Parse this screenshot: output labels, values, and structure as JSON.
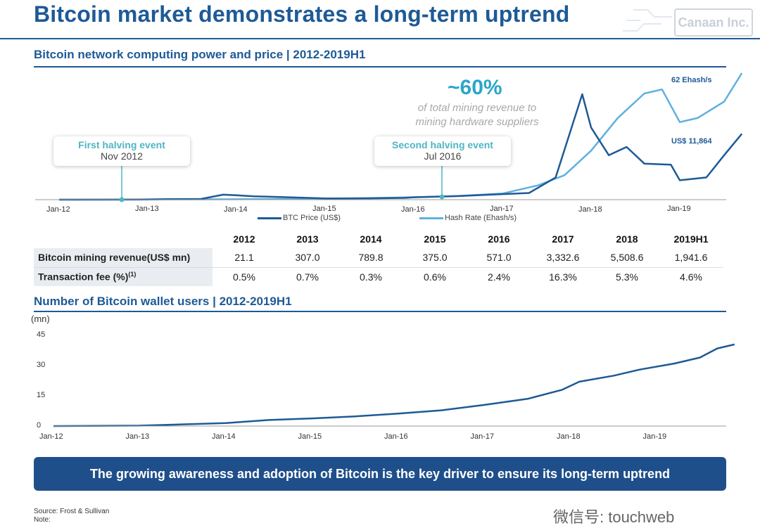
{
  "header": {
    "title": "Bitcoin market demonstrates a long-term uptrend",
    "logo": "Canaan Inc."
  },
  "top_chart": {
    "section_title": "Bitcoin network computing power and price | 2012-2019H1",
    "callout_first": {
      "heading": "First halving event",
      "sub": "Nov 2012"
    },
    "callout_second": {
      "heading": "Second halving event",
      "sub": "Jul 2016"
    },
    "pct": "~60%",
    "pct_note_1": "of total mining revenue to",
    "pct_note_2": "mining hardware suppliers",
    "hash_label": "62 Ehash/s",
    "price_label": "US$ 11,864",
    "legend_btc": "BTC Price (US$)",
    "legend_hash": "Hash Rate (Ehash/s)",
    "colors": {
      "btc": "#1e5a96",
      "hash": "#5fb0df"
    }
  },
  "table": {
    "headers": [
      "2012",
      "2013",
      "2014",
      "2015",
      "2016",
      "2017",
      "2018",
      "2019H1"
    ],
    "rows": [
      {
        "label": "Bitcoin mining revenue(US$ mn)",
        "values": [
          "21.1",
          "307.0",
          "789.8",
          "375.0",
          "571.0",
          "3,332.6",
          "5,508.6",
          "1,941.6"
        ]
      },
      {
        "label": "Transaction fee (%)",
        "sup": "(1)",
        "values": [
          "0.5%",
          "0.7%",
          "0.3%",
          "0.6%",
          "2.4%",
          "16.3%",
          "5.3%",
          "4.6%"
        ]
      }
    ]
  },
  "bottom_chart": {
    "section_title": "Number of Bitcoin wallet users | 2012-2019H1",
    "unit": "(mn)"
  },
  "chart_data": [
    {
      "type": "line",
      "x": [
        "Jan-12",
        "Jan-13",
        "Jan-14",
        "Jan-15",
        "Jan-16",
        "Jan-17",
        "Jan-18",
        "Jan-19"
      ],
      "series": [
        {
          "name": "BTC Price (US$)",
          "points": [
            [
              0,
              6
            ],
            [
              0.5,
              6
            ],
            [
              0.9,
              13
            ],
            [
              1.2,
              100
            ],
            [
              1.6,
              130
            ],
            [
              1.85,
              900
            ],
            [
              2.0,
              800
            ],
            [
              2.2,
              600
            ],
            [
              2.5,
              480
            ],
            [
              3.0,
              220
            ],
            [
              3.5,
              240
            ],
            [
              3.9,
              320
            ],
            [
              4.0,
              430
            ],
            [
              4.5,
              650
            ],
            [
              5.0,
              1000
            ],
            [
              5.3,
              1200
            ],
            [
              5.6,
              4000
            ],
            [
              5.9,
              19000
            ],
            [
              6.0,
              13000
            ],
            [
              6.2,
              8000
            ],
            [
              6.4,
              9500
            ],
            [
              6.6,
              6500
            ],
            [
              6.9,
              6300
            ],
            [
              7.0,
              3500
            ],
            [
              7.3,
              4000
            ],
            [
              7.5,
              8000
            ],
            [
              7.7,
              11864
            ]
          ]
        },
        {
          "name": "Hash Rate (Ehash/s)",
          "points": [
            [
              0,
              0
            ],
            [
              2.0,
              0.2
            ],
            [
              3.0,
              0.4
            ],
            [
              4.0,
              1.2
            ],
            [
              4.5,
              1.8
            ],
            [
              5.0,
              3
            ],
            [
              5.4,
              7
            ],
            [
              5.7,
              12
            ],
            [
              6.0,
              24
            ],
            [
              6.3,
              40
            ],
            [
              6.6,
              52
            ],
            [
              6.8,
              54
            ],
            [
              7.0,
              38
            ],
            [
              7.2,
              40
            ],
            [
              7.5,
              48
            ],
            [
              7.7,
              62
            ]
          ]
        }
      ],
      "annotations": [
        "First halving event Nov 2012",
        "Second halving event Jul 2016",
        "~60% of total mining revenue to mining hardware suppliers",
        "62 Ehash/s",
        "US$ 11,864"
      ]
    },
    {
      "type": "line",
      "x": [
        "Jan-12",
        "Jan-13",
        "Jan-14",
        "Jan-15",
        "Jan-16",
        "Jan-17",
        "Jan-18",
        "Jan-19"
      ],
      "yticks": [
        0,
        15,
        30,
        45
      ],
      "ylim": [
        0,
        45
      ],
      "ylabel": "(mn)",
      "series": [
        {
          "name": "Number of Bitcoin wallet users",
          "points": [
            [
              0,
              0
            ],
            [
              1.0,
              0.2
            ],
            [
              2.0,
              1.5
            ],
            [
              2.5,
              3
            ],
            [
              3.0,
              3.8
            ],
            [
              3.5,
              4.8
            ],
            [
              4.0,
              6.2
            ],
            [
              4.5,
              7.8
            ],
            [
              5.0,
              10.5
            ],
            [
              5.5,
              13.5
            ],
            [
              5.9,
              18
            ],
            [
              6.1,
              22
            ],
            [
              6.5,
              25
            ],
            [
              6.8,
              28
            ],
            [
              7.2,
              31
            ],
            [
              7.5,
              34
            ],
            [
              7.7,
              38.5
            ],
            [
              7.9,
              40.5
            ]
          ]
        }
      ]
    }
  ],
  "banner": "The growing awareness and adoption of Bitcoin is the key driver to ensure its long-term uptrend",
  "footer": {
    "source": "Source: Frost & Sullivan",
    "note": "Note:"
  },
  "watermark": "微信号: touchweb"
}
